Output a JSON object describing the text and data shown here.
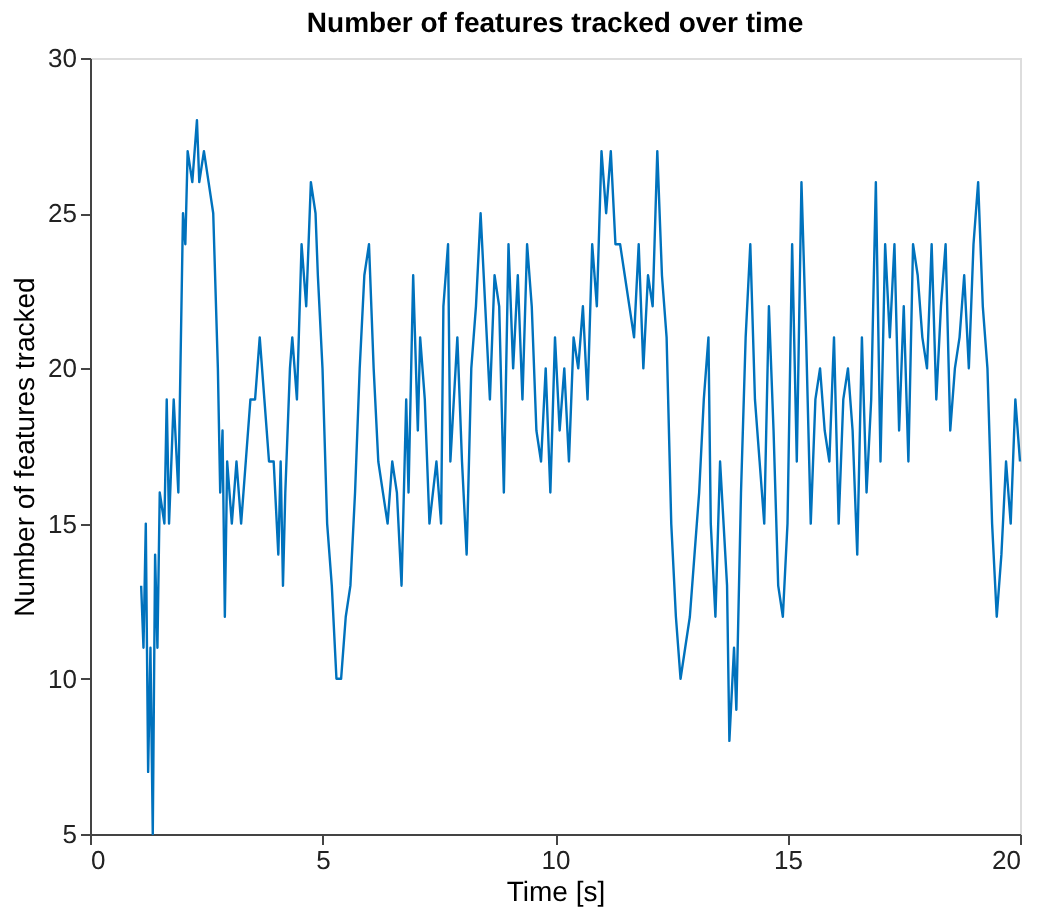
{
  "chart_data": {
    "type": "line",
    "title": "Number of features tracked over time",
    "xlabel": "Time [s]",
    "ylabel": "Number of features tracked",
    "xlim": [
      0,
      20
    ],
    "xticks": [
      0,
      5,
      10,
      15,
      20
    ],
    "ylim": [
      5,
      30
    ],
    "yticks": [
      5,
      10,
      15,
      20,
      25,
      30
    ],
    "grid": false,
    "legend": false,
    "line_style": "solid",
    "marker": "none",
    "x": [
      1.1,
      1.15,
      1.2,
      1.25,
      1.3,
      1.35,
      1.4,
      1.45,
      1.5,
      1.6,
      1.65,
      1.7,
      1.8,
      1.9,
      2.0,
      2.05,
      2.1,
      2.2,
      2.3,
      2.35,
      2.45,
      2.55,
      2.65,
      2.75,
      2.8,
      2.85,
      2.9,
      2.95,
      3.05,
      3.15,
      3.25,
      3.35,
      3.45,
      3.55,
      3.65,
      3.75,
      3.85,
      3.95,
      4.05,
      4.1,
      4.15,
      4.2,
      4.3,
      4.35,
      4.45,
      4.55,
      4.65,
      4.75,
      4.85,
      4.9,
      5.0,
      5.1,
      5.2,
      5.3,
      5.4,
      5.5,
      5.6,
      5.7,
      5.8,
      5.9,
      6.0,
      6.1,
      6.2,
      6.3,
      6.4,
      6.5,
      6.6,
      6.7,
      6.8,
      6.85,
      6.95,
      7.05,
      7.1,
      7.2,
      7.3,
      7.45,
      7.55,
      7.6,
      7.7,
      7.75,
      7.9,
      8.0,
      8.1,
      8.2,
      8.3,
      8.4,
      8.5,
      8.6,
      8.7,
      8.8,
      8.9,
      9.0,
      9.1,
      9.2,
      9.3,
      9.4,
      9.5,
      9.6,
      9.7,
      9.8,
      9.9,
      10.0,
      10.1,
      10.2,
      10.3,
      10.4,
      10.5,
      10.6,
      10.7,
      10.8,
      10.9,
      11.0,
      11.1,
      11.2,
      11.3,
      11.4,
      11.5,
      11.6,
      11.7,
      11.8,
      11.9,
      12.0,
      12.1,
      12.2,
      12.3,
      12.4,
      12.5,
      12.6,
      12.7,
      12.8,
      12.9,
      13.0,
      13.1,
      13.2,
      13.3,
      13.35,
      13.45,
      13.55,
      13.7,
      13.75,
      13.85,
      13.9,
      14.0,
      14.1,
      14.2,
      14.3,
      14.4,
      14.5,
      14.6,
      14.7,
      14.8,
      14.9,
      15.0,
      15.1,
      15.2,
      15.3,
      15.4,
      15.5,
      15.6,
      15.7,
      15.8,
      15.9,
      16.0,
      16.1,
      16.2,
      16.3,
      16.4,
      16.5,
      16.6,
      16.7,
      16.8,
      16.9,
      17.0,
      17.1,
      17.2,
      17.3,
      17.4,
      17.5,
      17.6,
      17.7,
      17.8,
      17.9,
      18.0,
      18.1,
      18.2,
      18.3,
      18.4,
      18.5,
      18.6,
      18.7,
      18.8,
      18.9,
      19.0,
      19.1,
      19.2,
      19.3,
      19.4,
      19.5,
      19.6,
      19.7,
      19.8,
      19.9,
      20.0
    ],
    "series": [
      {
        "color": "#0072bd",
        "values": [
          13,
          11,
          15,
          7,
          11,
          5,
          14,
          11,
          16,
          15,
          19,
          15,
          19,
          16,
          25,
          24,
          27,
          26,
          28,
          26,
          27,
          26,
          25,
          20,
          16,
          18,
          12,
          17,
          15,
          17,
          15,
          17,
          19,
          19,
          21,
          19,
          17,
          17,
          14,
          17,
          13,
          16,
          20,
          21,
          19,
          24,
          22,
          26,
          25,
          23,
          20,
          15,
          13,
          10,
          10,
          12,
          13,
          16,
          20,
          23,
          24,
          20,
          17,
          16,
          15,
          17,
          16,
          13,
          19,
          16,
          23,
          18,
          21,
          19,
          15,
          17,
          15,
          22,
          24,
          17,
          21,
          17,
          14,
          20,
          22,
          25,
          22,
          19,
          23,
          22,
          16,
          24,
          20,
          23,
          19,
          24,
          22,
          18,
          17,
          20,
          16,
          21,
          18,
          20,
          17,
          21,
          20,
          22,
          19,
          24,
          22,
          27,
          25,
          27,
          24,
          24,
          23,
          22,
          21,
          24,
          20,
          23,
          22,
          27,
          23,
          21,
          15,
          12,
          10,
          11,
          12,
          14,
          16,
          19,
          21,
          15,
          12,
          17,
          13,
          8,
          11,
          9,
          16,
          21,
          24,
          19,
          17,
          15,
          22,
          18,
          13,
          12,
          15,
          24,
          17,
          26,
          21,
          15,
          19,
          20,
          18,
          17,
          21,
          15,
          19,
          20,
          18,
          14,
          21,
          16,
          19,
          26,
          17,
          24,
          21,
          24,
          18,
          22,
          17,
          24,
          23,
          21,
          20,
          24,
          19,
          22,
          24,
          18,
          20,
          21,
          23,
          20,
          24,
          26,
          22,
          20,
          15,
          12,
          14,
          17,
          15,
          19,
          17
        ]
      }
    ]
  }
}
